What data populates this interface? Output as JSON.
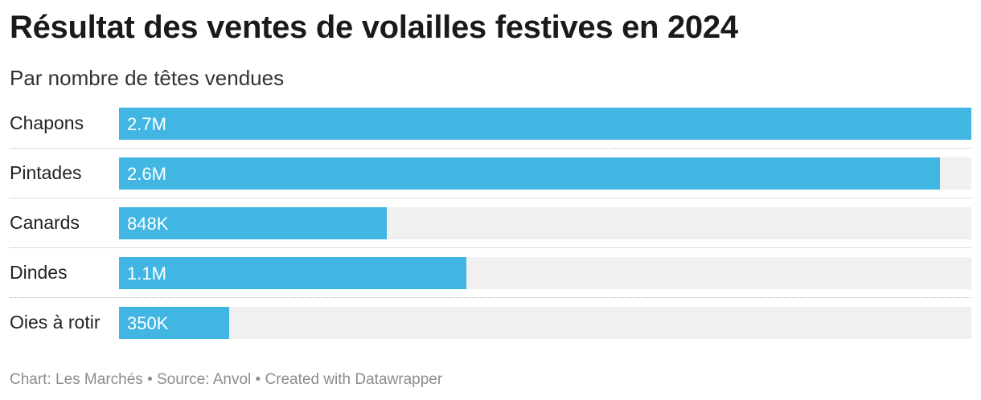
{
  "chart_data": {
    "type": "bar",
    "orientation": "horizontal",
    "title": "Résultat des ventes de volailles festives en 2024",
    "subtitle": "Par nombre de têtes vendues",
    "categories": [
      "Chapons",
      "Pintades",
      "Canards",
      "Dindes",
      "Oies à rotir"
    ],
    "values": [
      2700000,
      2600000,
      848000,
      1100000,
      350000
    ],
    "value_labels": [
      "2.7M",
      "2.6M",
      "848K",
      "1.1M",
      "350K"
    ],
    "xlim": [
      0,
      2700000
    ],
    "bar_color": "#41b6e3",
    "track_color": "#f0f0f0",
    "grid": false,
    "legend": "none"
  },
  "footer": {
    "credit": "Chart: Les Marchés • Source: Anvol • Created with Datawrapper"
  }
}
